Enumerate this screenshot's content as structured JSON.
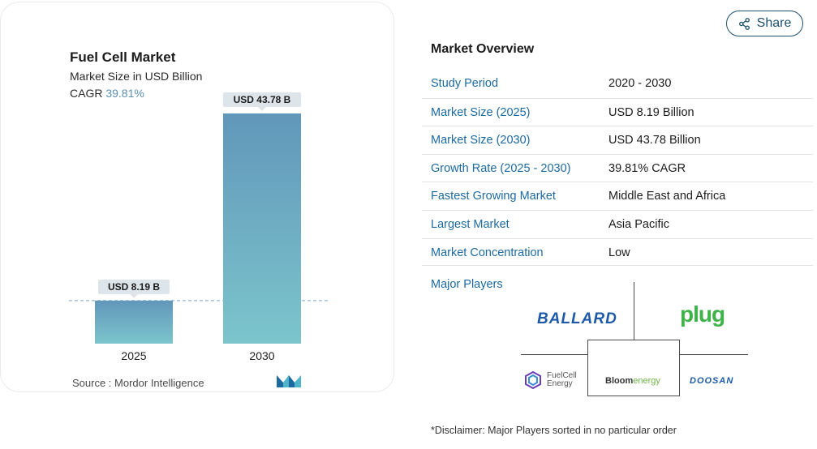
{
  "chart_card": {
    "title": "Fuel Cell Market",
    "subtitle": "Market Size in USD Billion",
    "cagr_label": "CAGR",
    "cagr_value": "39.81%",
    "source": "Source :  Mordor Intelligence"
  },
  "chart_data": {
    "type": "bar",
    "categories": [
      "2025",
      "2030"
    ],
    "values": [
      8.19,
      43.78
    ],
    "data_labels": [
      "USD 8.19 B",
      "USD 43.78 B"
    ],
    "title": "Fuel Cell Market",
    "subtitle": "Market Size in USD Billion",
    "ylim": [
      0,
      43.78
    ],
    "grid": false,
    "reference_line_at": 8.19,
    "colors": {
      "bar_top": "#6197ba",
      "bar_bottom": "#7cc5cc",
      "label_bg": "#dde5ea",
      "dashed_line": "#7aa4c0"
    }
  },
  "share": {
    "label": "Share",
    "icon": "share-icon"
  },
  "overview": {
    "title": "Market Overview",
    "rows": [
      {
        "label": "Study Period",
        "value": "2020 - 2030"
      },
      {
        "label": "Market Size (2025)",
        "value": "USD 8.19 Billion"
      },
      {
        "label": "Market Size (2030)",
        "value": "USD 43.78 Billion"
      },
      {
        "label": "Growth Rate (2025 - 2030)",
        "value": "39.81% CAGR"
      },
      {
        "label": "Fastest Growing Market",
        "value": "Middle East and Africa"
      },
      {
        "label": "Largest Market",
        "value": "Asia Pacific"
      },
      {
        "label": "Market Concentration",
        "value": "Low"
      }
    ]
  },
  "major_players": {
    "title": "Major Players",
    "logos": {
      "ballard": "BALLARD",
      "plug": "plug",
      "fuelcell_line1": "FuelCell",
      "fuelcell_line2": "Energy",
      "bloom_a": "Bloom",
      "bloom_b": "energy",
      "doosan": "DOOSAN"
    },
    "disclaimer": "*Disclaimer: Major Players sorted in no particular order"
  },
  "colors": {
    "accent": "#1d6aa0",
    "share_border": "#1d4f6e",
    "cagr": "#5b8fb0"
  }
}
